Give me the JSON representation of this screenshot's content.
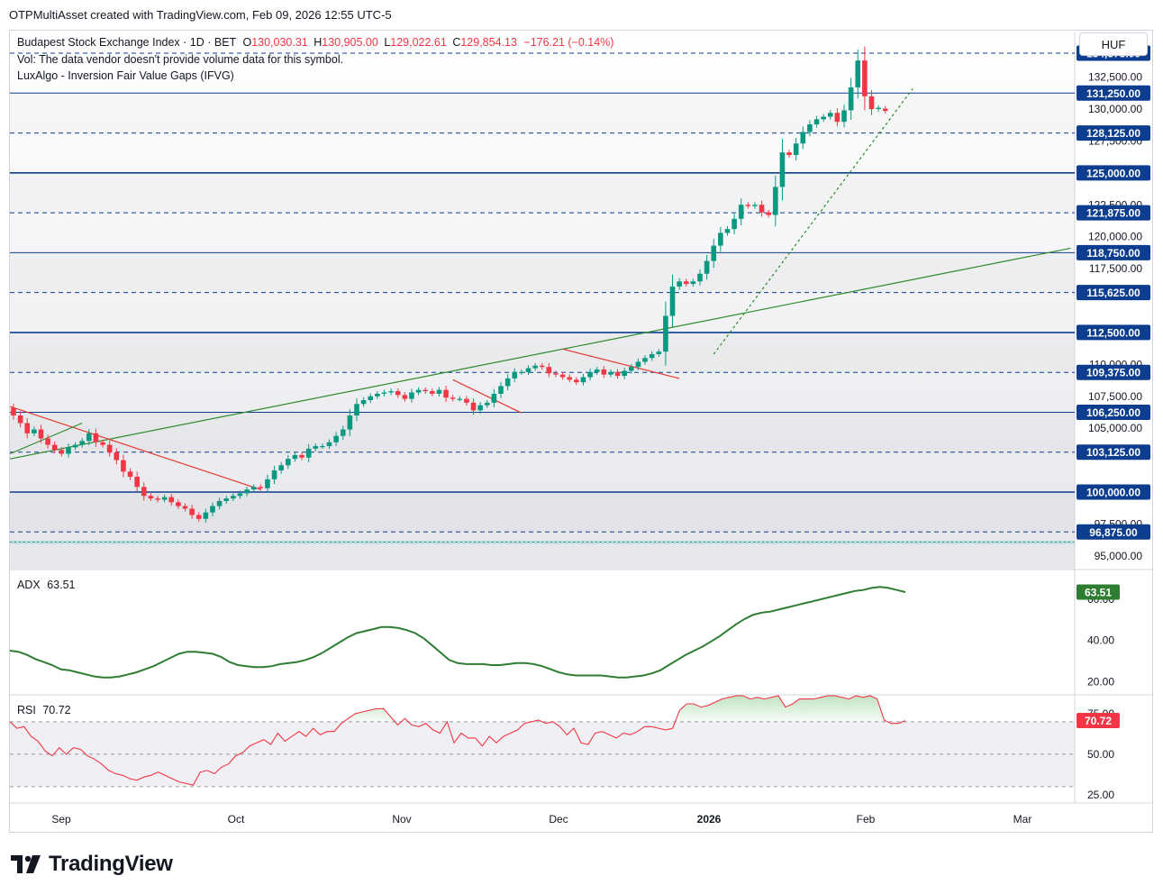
{
  "header": {
    "attribution": "OTPMultiAsset created with TradingView.com, Feb 09, 2026 12:55 UTC-5"
  },
  "legend": {
    "symbol": "Budapest Stock Exchange Index · 1D · BET",
    "o_label": "O",
    "o_value": "130,030.31",
    "h_label": "H",
    "h_value": "130,905.00",
    "l_label": "L",
    "l_value": "129,022.61",
    "c_label": "C",
    "c_value": "129,854.13",
    "change": "−176.21 (−0.14%)",
    "vol_note": "Vol: The data vendor doesn't provide volume data for this symbol.",
    "indicator": "LuxAlgo - Inversion Fair Value Gaps (IFVG)"
  },
  "currency": "HUF",
  "brand": {
    "name": "TradingView"
  },
  "colors": {
    "up": "#089981",
    "down": "#f23645",
    "level": "#0d3d8f",
    "trend": "#2e8b2e",
    "adx": "#2e7d32",
    "rsi": "#f23645",
    "tag_bg": "#0d3d8f"
  },
  "chart_data": [
    {
      "type": "candlestick",
      "title": "Budapest Stock Exchange Index · 1D · BET",
      "x_ticks": [
        "Sep",
        "Oct",
        "Nov",
        "Dec",
        "2026",
        "Feb",
        "Mar"
      ],
      "ylim": [
        94000,
        136000
      ],
      "y_ticks": [
        "95,000.00",
        "97,500.00",
        "105,000.00",
        "107,500.00",
        "110,000.00",
        "117,500.00",
        "120,000.00",
        "122,500.00",
        "127,500.00",
        "130,000.00",
        "132,500.00"
      ],
      "levels": [
        {
          "value": 134375,
          "label": "134,375.00",
          "style": "dashed"
        },
        {
          "value": 131250,
          "label": "131,250.00",
          "style": "solid-thin"
        },
        {
          "value": 128125,
          "label": "128,125.00",
          "style": "dashed"
        },
        {
          "value": 125000,
          "label": "125,000.00",
          "style": "solid"
        },
        {
          "value": 121875,
          "label": "121,875.00",
          "style": "dashed"
        },
        {
          "value": 118750,
          "label": "118,750.00",
          "style": "solid-thin"
        },
        {
          "value": 115625,
          "label": "115,625.00",
          "style": "dashed"
        },
        {
          "value": 112500,
          "label": "112,500.00",
          "style": "solid"
        },
        {
          "value": 109375,
          "label": "109,375.00",
          "style": "dashed"
        },
        {
          "value": 106250,
          "label": "106,250.00",
          "style": "solid-thin"
        },
        {
          "value": 103125,
          "label": "103,125.00",
          "style": "dashed"
        },
        {
          "value": 100000,
          "label": "100,000.00",
          "style": "solid"
        },
        {
          "value": 96875,
          "label": "96,875.00",
          "style": "dashed"
        }
      ],
      "closes": [
        106000,
        105400,
        104600,
        104900,
        104200,
        103700,
        103300,
        103000,
        103500,
        103700,
        104000,
        104600,
        103900,
        103700,
        103100,
        102500,
        101600,
        101200,
        100400,
        99700,
        99500,
        99400,
        99600,
        99200,
        98900,
        98700,
        98200,
        97900,
        98400,
        98900,
        99300,
        99500,
        99700,
        99900,
        100200,
        100400,
        100300,
        101000,
        101700,
        102100,
        102600,
        102900,
        102700,
        103400,
        103600,
        103600,
        103900,
        104400,
        104900,
        106000,
        106900,
        107200,
        107500,
        107700,
        107800,
        107900,
        107600,
        107300,
        107800,
        108000,
        107900,
        107700,
        108000,
        107400,
        107300,
        107300,
        107000,
        106400,
        106800,
        107000,
        107700,
        108300,
        108900,
        109400,
        109400,
        109700,
        109900,
        109800,
        109300,
        109200,
        109000,
        108800,
        108600,
        109000,
        109400,
        109600,
        109200,
        109400,
        109100,
        109500,
        109800,
        110200,
        110500,
        110800,
        111000,
        113800,
        116100,
        116500,
        116300,
        116500,
        117100,
        118100,
        119300,
        120300,
        120600,
        121400,
        122500,
        122400,
        122500,
        121900,
        121700,
        123900,
        126600,
        126400,
        127300,
        128200,
        128800,
        129200,
        129400,
        129700,
        129000,
        129900,
        131700,
        133800,
        131000,
        130000,
        130100,
        129854
      ]
    },
    {
      "type": "line",
      "series": [
        {
          "name": "ADX",
          "last": "63.51"
        }
      ],
      "ylim": [
        14,
        74
      ],
      "y_ticks": [
        "20.00",
        "40.00",
        "60.00"
      ],
      "values": [
        35,
        34.5,
        33,
        31,
        29.5,
        28,
        26,
        25.5,
        24.5,
        23.5,
        22.5,
        22,
        22,
        22.5,
        23.5,
        24.5,
        26,
        27.5,
        29.5,
        31.5,
        33.5,
        34.5,
        34.5,
        34,
        33.5,
        32,
        29.5,
        28,
        27.5,
        27,
        27,
        27.5,
        28.5,
        29,
        29.5,
        30.5,
        32,
        34,
        36.5,
        39,
        41.5,
        43.5,
        44.5,
        45.5,
        46.5,
        46.5,
        46,
        45,
        43.5,
        41,
        37.5,
        34,
        30.5,
        29,
        28.5,
        28.5,
        28.5,
        28,
        28,
        28.5,
        29,
        29,
        28.5,
        27.5,
        26,
        24.5,
        23.5,
        23,
        23,
        23,
        23,
        22.5,
        22,
        22,
        22.5,
        23,
        24,
        25.5,
        28,
        30.5,
        33,
        35,
        37,
        39.5,
        42,
        45,
        48,
        50.5,
        52.5,
        53.5,
        54,
        55,
        56,
        57,
        58,
        59,
        60,
        61,
        62,
        63,
        64,
        64.5,
        65.5,
        66,
        65.5,
        64.5,
        63.51
      ]
    },
    {
      "type": "line",
      "series": [
        {
          "name": "RSI",
          "last": "70.72"
        }
      ],
      "ylim": [
        20,
        86
      ],
      "y_ticks": [
        "25.00",
        "50.00",
        "75.00"
      ],
      "values": [
        70,
        66,
        67,
        61,
        58,
        52,
        49,
        54,
        50,
        54,
        53,
        49,
        47,
        44,
        40,
        38,
        37,
        35,
        34,
        36,
        37,
        39,
        37,
        35,
        33,
        32,
        31,
        39,
        40,
        38,
        42,
        44,
        49,
        51,
        55,
        57,
        59,
        56,
        63,
        58,
        61,
        64,
        61,
        66,
        62,
        64,
        64,
        69,
        72,
        75,
        76,
        77,
        78,
        78,
        73,
        68,
        72,
        68,
        67,
        69,
        65,
        63,
        70,
        57,
        63,
        60,
        60,
        55,
        61,
        57,
        61,
        63,
        65,
        69,
        70,
        71,
        69,
        70,
        67,
        62,
        66,
        57,
        56,
        63,
        64,
        62,
        60,
        63,
        62,
        64,
        67,
        67,
        66,
        65,
        66,
        77,
        81,
        81,
        79,
        80,
        82,
        84,
        85,
        86,
        86,
        84,
        85,
        84,
        85,
        86,
        79,
        81,
        84,
        84,
        84,
        85,
        86,
        86,
        85,
        84,
        86,
        85,
        86,
        84,
        71,
        69,
        69,
        70.72
      ]
    }
  ]
}
